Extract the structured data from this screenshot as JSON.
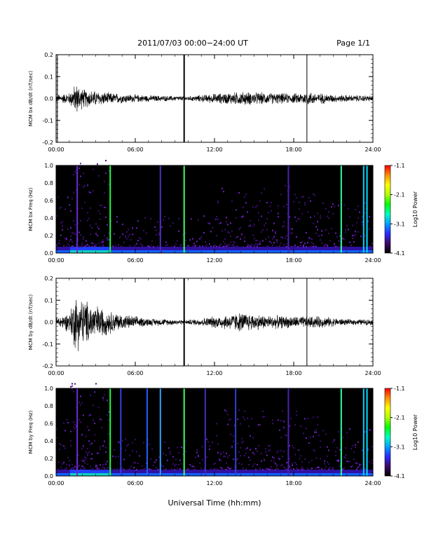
{
  "header": {
    "title": "2011/07/03  00:00−24:00 UT",
    "page": "Page 1/1"
  },
  "xaxis": {
    "label": "Universal Time (hh:mm)",
    "ticks": [
      "00:00",
      "06:00",
      "12:00",
      "18:00",
      "24:00"
    ],
    "range_hours": [
      0,
      24
    ]
  },
  "colorbar": {
    "label": "Log10 Power",
    "ticks": [
      "-1.1",
      "-2.1",
      "-3.1",
      "-4.1"
    ],
    "range": [
      -4.1,
      -1.1
    ],
    "colors": [
      "#000000",
      "#3c0a64",
      "#2a2aff",
      "#00a0ff",
      "#00ffc0",
      "#00ff00",
      "#b0ff00",
      "#ffff00",
      "#ff9000",
      "#ff0000"
    ]
  },
  "chart_data": [
    {
      "type": "line",
      "ylabel": "MCM bx dB/dt (nT/sec)",
      "ylim": [
        -0.2,
        0.2
      ],
      "yticks": [
        "0.2",
        "0.1",
        "0.0",
        "-0.1",
        "-0.2"
      ],
      "baseline": 0.0,
      "envelope": [
        {
          "x": 0.0,
          "amp": 0.02
        },
        {
          "x": 1.0,
          "amp": 0.03
        },
        {
          "x": 1.3,
          "amp": 0.06
        },
        {
          "x": 1.6,
          "amp": 0.08
        },
        {
          "x": 2.0,
          "amp": 0.05
        },
        {
          "x": 3.0,
          "amp": 0.04
        },
        {
          "x": 4.0,
          "amp": 0.03
        },
        {
          "x": 6.0,
          "amp": 0.02
        },
        {
          "x": 8.0,
          "amp": 0.015
        },
        {
          "x": 10.0,
          "amp": 0.012
        },
        {
          "x": 12.0,
          "amp": 0.025
        },
        {
          "x": 14.0,
          "amp": 0.035
        },
        {
          "x": 16.0,
          "amp": 0.03
        },
        {
          "x": 18.0,
          "amp": 0.025
        },
        {
          "x": 19.0,
          "amp": 0.035
        },
        {
          "x": 21.0,
          "amp": 0.02
        },
        {
          "x": 24.0,
          "amp": 0.015
        }
      ],
      "spikes": [
        0.1,
        9.7,
        19.0
      ]
    },
    {
      "type": "heatmap",
      "ylabel": "MCM bx Freq (Hz)",
      "ylim": [
        0.0,
        1.0
      ],
      "yticks": [
        "1.0",
        "0.8",
        "0.6",
        "0.4",
        "0.2",
        "0.0"
      ],
      "vertical_lines": [
        {
          "x": 1.6,
          "color": "#6a2ad0"
        },
        {
          "x": 4.1,
          "color": "#20ff40"
        },
        {
          "x": 7.9,
          "color": "#5030c0"
        },
        {
          "x": 9.7,
          "color": "#40ff60"
        },
        {
          "x": 17.6,
          "color": "#4a20b0"
        },
        {
          "x": 21.6,
          "color": "#30ffa0"
        },
        {
          "x": 23.3,
          "color": "#00d0ff"
        },
        {
          "x": 23.55,
          "color": "#00e0ff"
        }
      ]
    },
    {
      "type": "line",
      "ylabel": "MCM by dB/dt (nT/sec)",
      "ylim": [
        -0.2,
        0.2
      ],
      "yticks": [
        "0.2",
        "0.1",
        "0.0",
        "-0.1",
        "-0.2"
      ],
      "baseline": 0.0,
      "envelope": [
        {
          "x": 0.0,
          "amp": 0.025
        },
        {
          "x": 1.0,
          "amp": 0.05
        },
        {
          "x": 1.5,
          "amp": 0.15
        },
        {
          "x": 2.0,
          "amp": 0.12
        },
        {
          "x": 3.0,
          "amp": 0.09
        },
        {
          "x": 4.0,
          "amp": 0.06
        },
        {
          "x": 5.0,
          "amp": 0.04
        },
        {
          "x": 7.0,
          "amp": 0.02
        },
        {
          "x": 10.0,
          "amp": 0.012
        },
        {
          "x": 12.0,
          "amp": 0.03
        },
        {
          "x": 14.0,
          "amp": 0.05
        },
        {
          "x": 16.0,
          "amp": 0.035
        },
        {
          "x": 18.0,
          "amp": 0.03
        },
        {
          "x": 20.0,
          "amp": 0.03
        },
        {
          "x": 22.0,
          "amp": 0.015
        },
        {
          "x": 24.0,
          "amp": 0.015
        }
      ],
      "spikes": [
        9.7,
        19.0
      ]
    },
    {
      "type": "heatmap",
      "ylabel": "MCM by Freq (Hz)",
      "ylim": [
        0.0,
        1.0
      ],
      "yticks": [
        "1.0",
        "0.8",
        "0.6",
        "0.4",
        "0.2",
        "0.0"
      ],
      "vertical_lines": [
        {
          "x": 1.6,
          "color": "#6a2ad0"
        },
        {
          "x": 4.1,
          "color": "#20ff40"
        },
        {
          "x": 4.9,
          "color": "#3040e0"
        },
        {
          "x": 6.9,
          "color": "#2060ff"
        },
        {
          "x": 7.9,
          "color": "#30a0ff"
        },
        {
          "x": 9.7,
          "color": "#40ff60"
        },
        {
          "x": 11.3,
          "color": "#4030c0"
        },
        {
          "x": 13.6,
          "color": "#3040d0"
        },
        {
          "x": 17.6,
          "color": "#4a20b0"
        },
        {
          "x": 21.6,
          "color": "#30ffa0"
        },
        {
          "x": 23.3,
          "color": "#00d0ff"
        },
        {
          "x": 23.55,
          "color": "#00e0ff"
        }
      ]
    }
  ]
}
